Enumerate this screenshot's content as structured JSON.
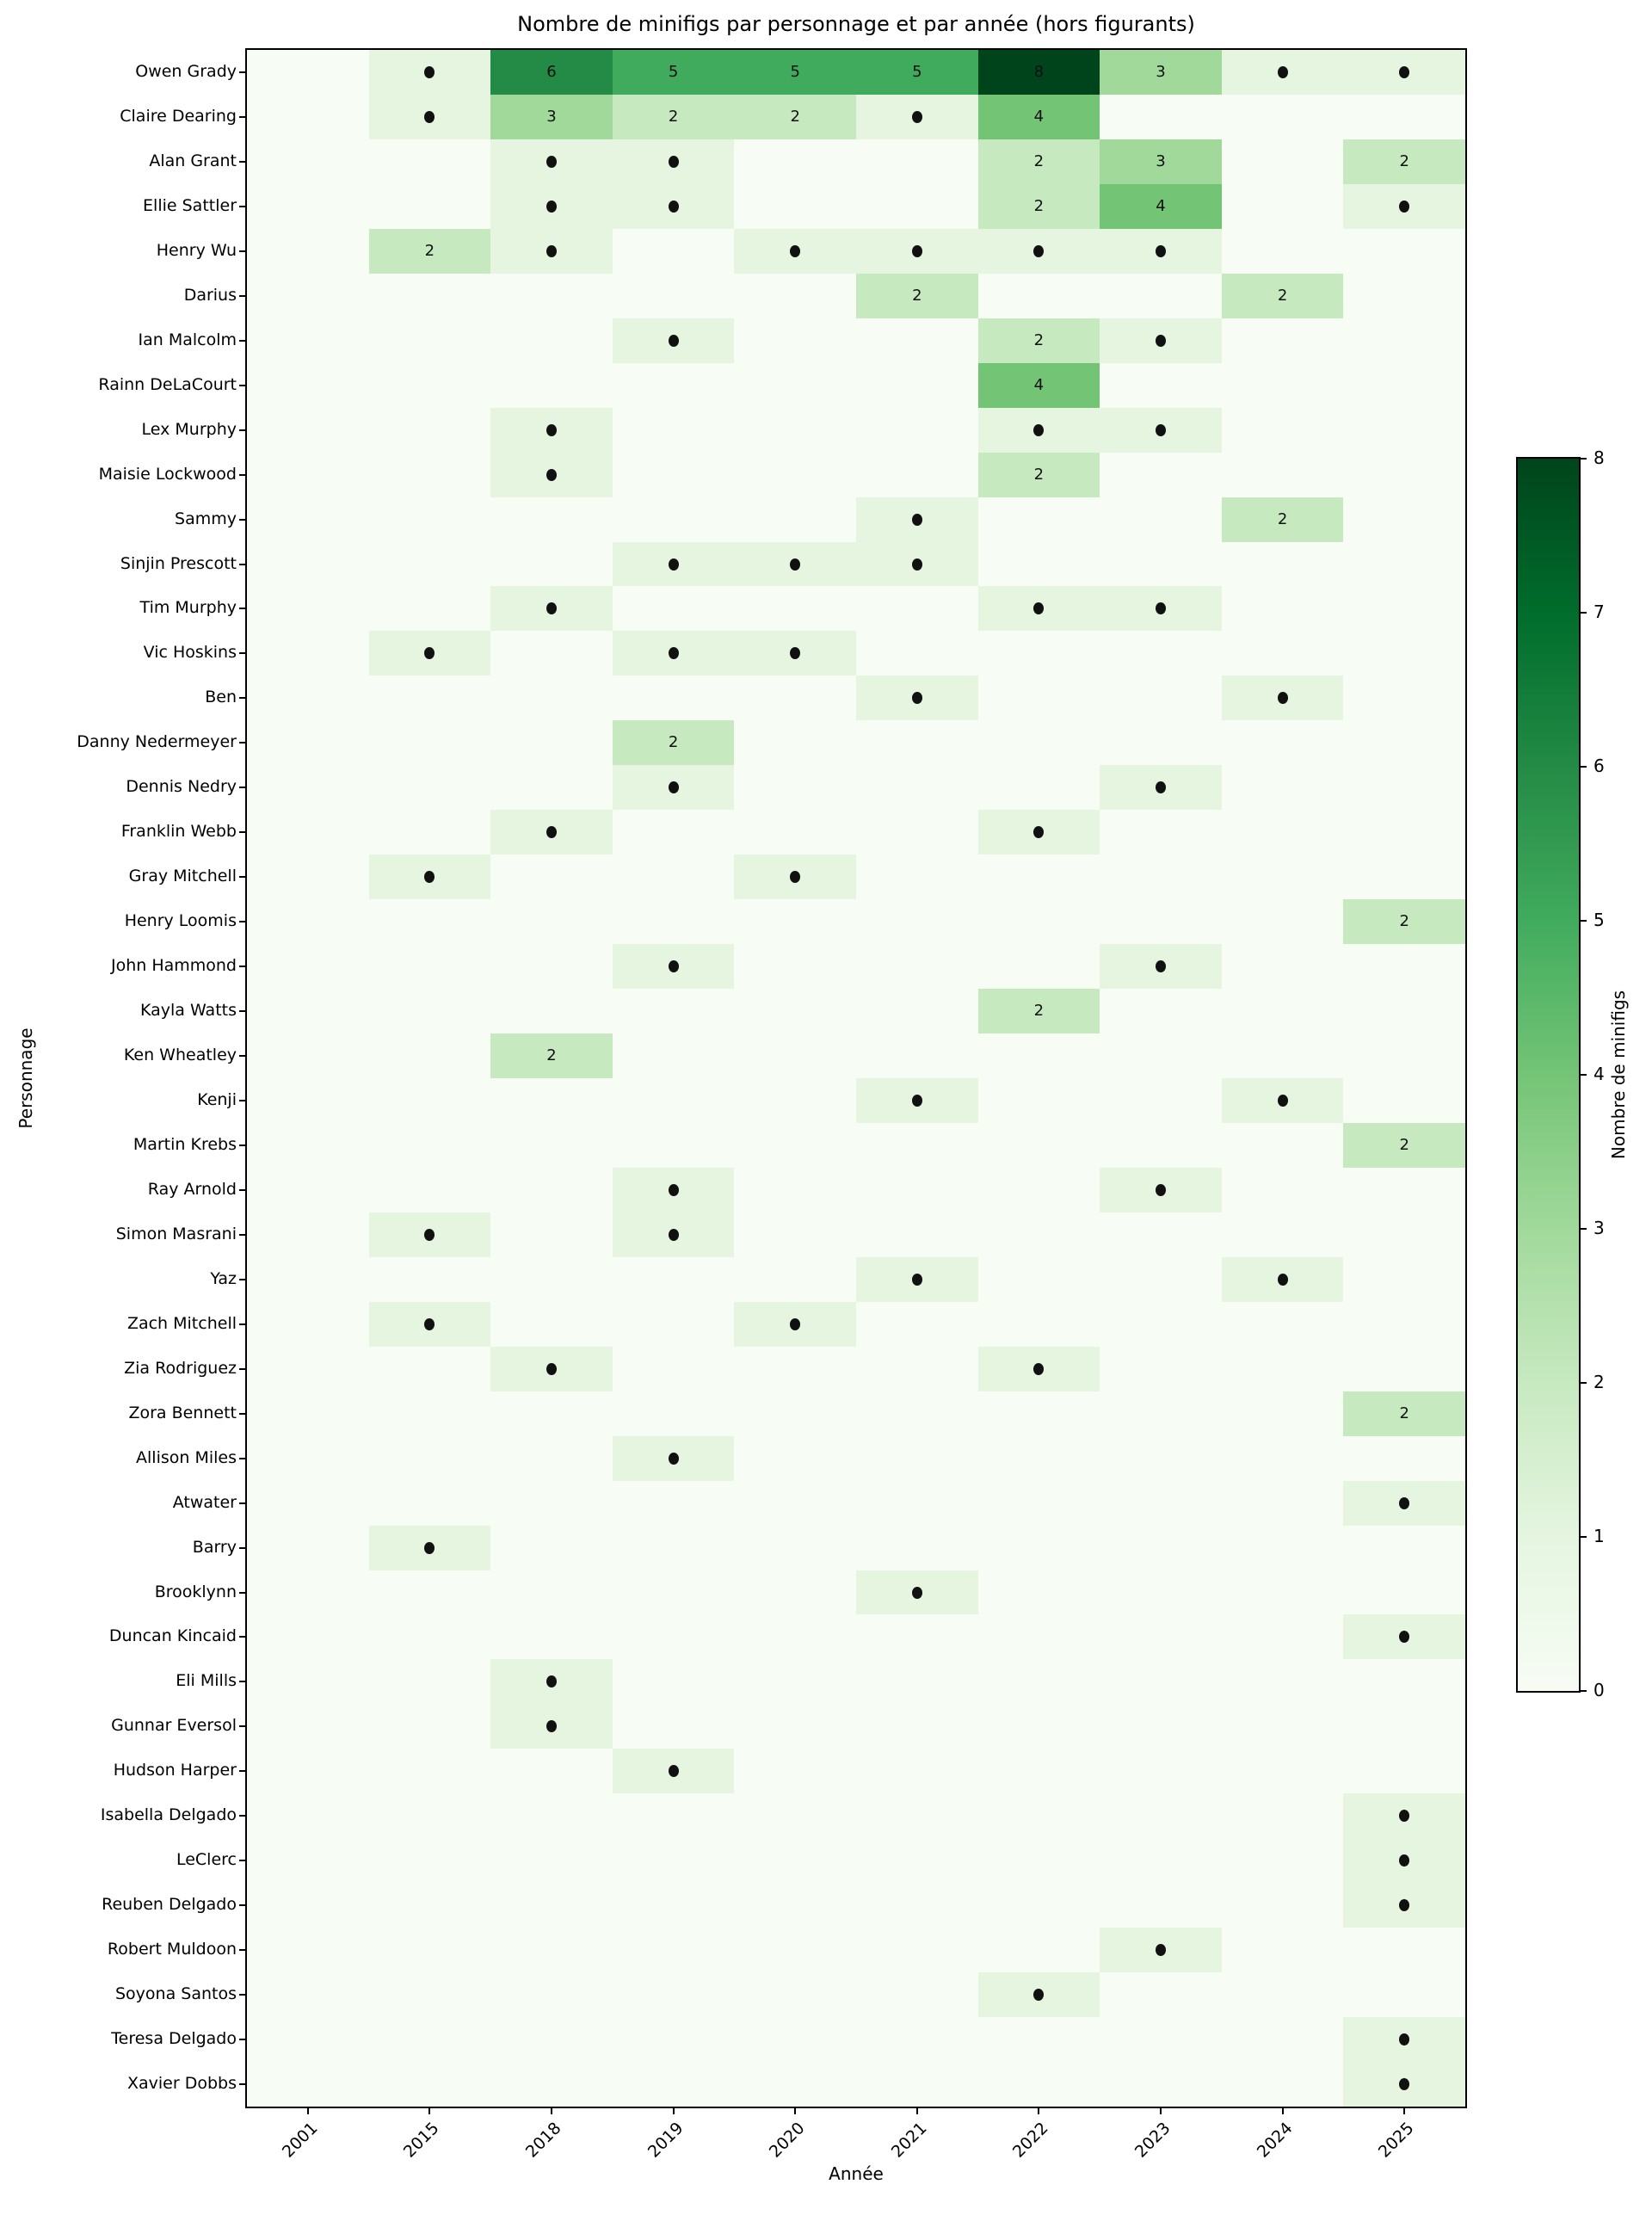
{
  "title": "Nombre de minifigs par personnage et par année (hors figurants)",
  "chart_data": {
    "type": "heatmap",
    "title": "Nombre de minifigs par personnage et par année (hors figurants)",
    "xlabel": "Année",
    "ylabel": "Personnage",
    "colorbar_label": "Nombre de minifigs",
    "legend_position": "right-colorbar",
    "grid": false,
    "vmin": 0,
    "vmax": 8,
    "colorbar_ticks": [
      "0",
      "1",
      "2",
      "3",
      "4",
      "5",
      "6",
      "7",
      "8"
    ],
    "x_categories": [
      "2001",
      "2015",
      "2018",
      "2019",
      "2020",
      "2021",
      "2022",
      "2023",
      "2024",
      "2025"
    ],
    "y_categories": [
      "Owen Grady",
      "Claire Dearing",
      "Alan Grant",
      "Ellie Sattler",
      "Henry Wu",
      "Darius",
      "Ian Malcolm",
      "Rainn DeLaCourt",
      "Lex Murphy",
      "Maisie Lockwood",
      "Sammy",
      "Sinjin Prescott",
      "Tim Murphy",
      "Vic Hoskins",
      "Ben",
      "Danny Nedermeyer",
      "Dennis Nedry",
      "Franklin Webb",
      "Gray Mitchell",
      "Henry Loomis",
      "John Hammond",
      "Kayla Watts",
      "Ken Wheatley",
      "Kenji",
      "Martin Krebs",
      "Ray Arnold",
      "Simon Masrani",
      "Yaz",
      "Zach Mitchell",
      "Zia Rodriguez",
      "Zora Bennett",
      "Allison Miles",
      "Atwater",
      "Barry",
      "Brooklynn",
      "Duncan Kincaid",
      "Eli Mills",
      "Gunnar Eversol",
      "Hudson Harper",
      "Isabella Delgado",
      "LeClerc",
      "Reuben Delgado",
      "Robert Muldoon",
      "Soyona Santos",
      "Teresa Delgado",
      "Xavier Dobbs"
    ],
    "values": [
      [
        0,
        1,
        6,
        5,
        5,
        5,
        8,
        3,
        1,
        1
      ],
      [
        0,
        1,
        3,
        2,
        2,
        1,
        4,
        0,
        0,
        0
      ],
      [
        0,
        0,
        1,
        1,
        0,
        0,
        2,
        3,
        0,
        2
      ],
      [
        0,
        0,
        1,
        1,
        0,
        0,
        2,
        4,
        0,
        1
      ],
      [
        0,
        2,
        1,
        0,
        1,
        1,
        1,
        1,
        0,
        0
      ],
      [
        0,
        0,
        0,
        0,
        0,
        2,
        0,
        0,
        2,
        0
      ],
      [
        0,
        0,
        0,
        1,
        0,
        0,
        2,
        1,
        0,
        0
      ],
      [
        0,
        0,
        0,
        0,
        0,
        0,
        4,
        0,
        0,
        0
      ],
      [
        0,
        0,
        1,
        0,
        0,
        0,
        1,
        1,
        0,
        0
      ],
      [
        0,
        0,
        1,
        0,
        0,
        0,
        2,
        0,
        0,
        0
      ],
      [
        0,
        0,
        0,
        0,
        0,
        1,
        0,
        0,
        2,
        0
      ],
      [
        0,
        0,
        0,
        1,
        1,
        1,
        0,
        0,
        0,
        0
      ],
      [
        0,
        0,
        1,
        0,
        0,
        0,
        1,
        1,
        0,
        0
      ],
      [
        0,
        1,
        0,
        1,
        1,
        0,
        0,
        0,
        0,
        0
      ],
      [
        0,
        0,
        0,
        0,
        0,
        1,
        0,
        0,
        1,
        0
      ],
      [
        0,
        0,
        0,
        2,
        0,
        0,
        0,
        0,
        0,
        0
      ],
      [
        0,
        0,
        0,
        1,
        0,
        0,
        0,
        1,
        0,
        0
      ],
      [
        0,
        0,
        1,
        0,
        0,
        0,
        1,
        0,
        0,
        0
      ],
      [
        0,
        1,
        0,
        0,
        1,
        0,
        0,
        0,
        0,
        0
      ],
      [
        0,
        0,
        0,
        0,
        0,
        0,
        0,
        0,
        0,
        2
      ],
      [
        0,
        0,
        0,
        1,
        0,
        0,
        0,
        1,
        0,
        0
      ],
      [
        0,
        0,
        0,
        0,
        0,
        0,
        2,
        0,
        0,
        0
      ],
      [
        0,
        0,
        2,
        0,
        0,
        0,
        0,
        0,
        0,
        0
      ],
      [
        0,
        0,
        0,
        0,
        0,
        1,
        0,
        0,
        1,
        0
      ],
      [
        0,
        0,
        0,
        0,
        0,
        0,
        0,
        0,
        0,
        2
      ],
      [
        0,
        0,
        0,
        1,
        0,
        0,
        0,
        1,
        0,
        0
      ],
      [
        0,
        1,
        0,
        1,
        0,
        0,
        0,
        0,
        0,
        0
      ],
      [
        0,
        0,
        0,
        0,
        0,
        1,
        0,
        0,
        1,
        0
      ],
      [
        0,
        1,
        0,
        0,
        1,
        0,
        0,
        0,
        0,
        0
      ],
      [
        0,
        0,
        1,
        0,
        0,
        0,
        1,
        0,
        0,
        0
      ],
      [
        0,
        0,
        0,
        0,
        0,
        0,
        0,
        0,
        0,
        2
      ],
      [
        0,
        0,
        0,
        1,
        0,
        0,
        0,
        0,
        0,
        0
      ],
      [
        0,
        0,
        0,
        0,
        0,
        0,
        0,
        0,
        0,
        1
      ],
      [
        0,
        1,
        0,
        0,
        0,
        0,
        0,
        0,
        0,
        0
      ],
      [
        0,
        0,
        0,
        0,
        0,
        1,
        0,
        0,
        0,
        0
      ],
      [
        0,
        0,
        0,
        0,
        0,
        0,
        0,
        0,
        0,
        1
      ],
      [
        0,
        0,
        1,
        0,
        0,
        0,
        0,
        0,
        0,
        0
      ],
      [
        0,
        0,
        1,
        0,
        0,
        0,
        0,
        0,
        0,
        0
      ],
      [
        0,
        0,
        0,
        1,
        0,
        0,
        0,
        0,
        0,
        0
      ],
      [
        0,
        0,
        0,
        0,
        0,
        0,
        0,
        0,
        0,
        1
      ],
      [
        0,
        0,
        0,
        0,
        0,
        0,
        0,
        0,
        0,
        1
      ],
      [
        0,
        0,
        0,
        0,
        0,
        0,
        0,
        0,
        0,
        1
      ],
      [
        0,
        0,
        0,
        0,
        0,
        0,
        0,
        1,
        0,
        0
      ],
      [
        0,
        0,
        0,
        0,
        0,
        0,
        1,
        0,
        0,
        0
      ],
      [
        0,
        0,
        0,
        0,
        0,
        0,
        0,
        0,
        0,
        1
      ],
      [
        0,
        0,
        0,
        0,
        0,
        0,
        0,
        0,
        0,
        1
      ]
    ],
    "annotation_rule": "value 1 drawn as black dot; values >= 2 drawn as number",
    "colormap": {
      "name": "Greens",
      "stops": [
        "#f7fcf5",
        "#e5f5e0",
        "#c7e9c0",
        "#a1d99b",
        "#74c476",
        "#41ab5d",
        "#238b45",
        "#006d2c",
        "#00441b"
      ]
    },
    "colors": {
      "annotation_text": "#111111",
      "dot": "#111111",
      "axis": "#000000",
      "background": "#ffffff"
    }
  }
}
